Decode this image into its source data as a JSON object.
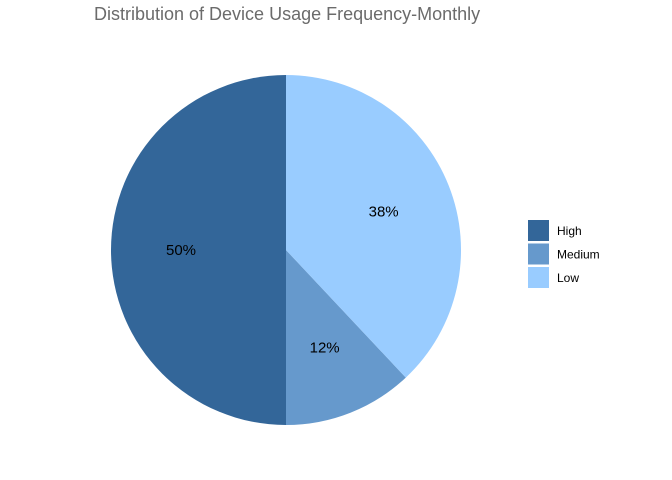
{
  "chart_data": {
    "type": "pie",
    "title": "Distribution of Device Usage Frequency-Monthly",
    "categories": [
      "High",
      "Medium",
      "Low"
    ],
    "values": [
      50,
      12,
      38
    ],
    "labels": [
      "50%",
      "12%",
      "38%"
    ],
    "colors": [
      "#336699",
      "#6699cc",
      "#99ccff"
    ],
    "start_angle": "12 o'clock",
    "direction": "counterclockwise",
    "legend": {
      "position": "right",
      "entries": [
        "High",
        "Medium",
        "Low"
      ]
    }
  }
}
